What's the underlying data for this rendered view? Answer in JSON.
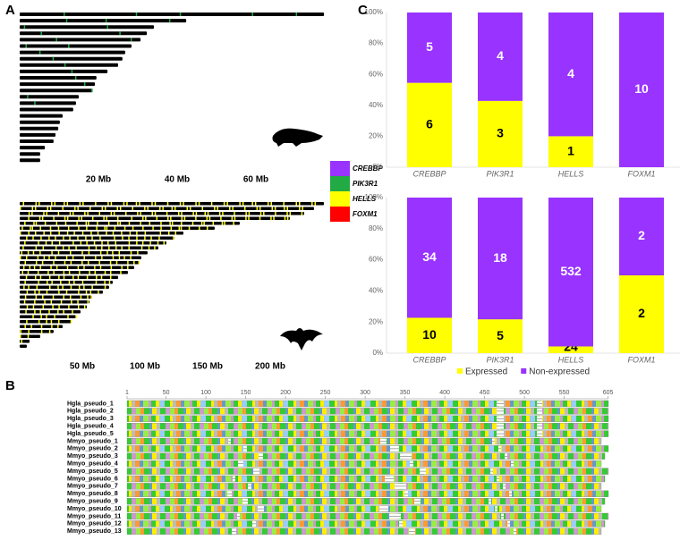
{
  "panel_a": {
    "label": "A",
    "legend": [
      {
        "name": "CREBBP",
        "color": "#9933ff"
      },
      {
        "name": "PIK3R1",
        "color": "#22aa44"
      },
      {
        "name": "HELLS",
        "color": "#ffff00"
      },
      {
        "name": "FOXM1",
        "color": "#ff0000"
      }
    ],
    "mole": {
      "ticks": [
        {
          "value": 20,
          "label": "20 Mb"
        },
        {
          "value": 40,
          "label": "40 Mb"
        },
        {
          "value": 60,
          "label": "60 Mb"
        }
      ],
      "scaffolds": [
        77.3,
        42.3,
        34.1,
        32.3,
        30.7,
        28.4,
        26.8,
        26.1,
        25,
        22.3,
        19.5,
        19.1,
        18.4,
        15,
        14.3,
        13.6,
        10.9,
        10.2,
        9.8,
        9.1,
        8.6,
        6.4,
        5.2,
        5.2
      ]
    },
    "bat": {
      "ticks": [
        {
          "value": 50,
          "label": "50 Mb"
        },
        {
          "value": 100,
          "label": "100 Mb"
        },
        {
          "value": 150,
          "label": "150 Mb"
        },
        {
          "value": 200,
          "label": "200 Mb"
        }
      ],
      "scaffolds": [
        242.9,
        235,
        227.1,
        215.7,
        175.7,
        155.7,
        130.7,
        123.6,
        117.1,
        110.7,
        102.1,
        97.1,
        95.7,
        91.4,
        86.4,
        78.6,
        74.3,
        71.4,
        66.4,
        57.9,
        55.7,
        53.6,
        48.6,
        45,
        41.4,
        34.3,
        27.1,
        16.4,
        7.9,
        5.7
      ]
    }
  },
  "panel_b": {
    "label": "B",
    "ticks": [
      1,
      50,
      100,
      150,
      200,
      250,
      300,
      350,
      400,
      450,
      500,
      550,
      605
    ],
    "sequences": [
      "Hgla_pseudo_1",
      "Hgla_pseudo_2",
      "Hgla_pseudo_3",
      "Hgla_pseudo_4",
      "Hgla_pseudo_5",
      "Mmyo_pseudo_1",
      "Mmyo_pseudo_2",
      "Mmyo_pseudo_3",
      "Mmyo_pseudo_4",
      "Mmyo_pseudo_5",
      "Mmyo_pseudo_6",
      "Mmyo_pseudo_7",
      "Mmyo_pseudo_8",
      "Mmyo_pseudo_9",
      "Mmyo_pseudo_10",
      "Mmyo_pseudo_11",
      "Mmyo_pseudo_12",
      "Mmyo_pseudo_13"
    ]
  },
  "panel_c": {
    "label": "C"
  },
  "chart_data": [
    {
      "type": "bar",
      "stacking": "percent",
      "categories": [
        "CREBBP",
        "PIK3R1",
        "HELLS",
        "FOXM1"
      ],
      "series": [
        {
          "color": "#ffff00",
          "values": [
            6,
            3,
            1,
            0
          ]
        },
        {
          "color": "#9933ff",
          "values": [
            5,
            4,
            4,
            10
          ]
        }
      ],
      "ylim": [
        0,
        100
      ],
      "yticks": [
        {
          "value": 0,
          "label": "0%"
        },
        {
          "value": 20,
          "label": "20%"
        },
        {
          "value": 40,
          "label": "40%"
        },
        {
          "value": 60,
          "label": "60%"
        },
        {
          "value": 80,
          "label": "80%"
        },
        {
          "value": 100,
          "label": "100%"
        }
      ]
    },
    {
      "type": "bar",
      "stacking": "percent",
      "categories": [
        "CREBBP",
        "PIK3R1",
        "HELLS",
        "FOXM1"
      ],
      "series": [
        {
          "name": "Expressed",
          "color": "#ffff00",
          "values": [
            10,
            5,
            24,
            2
          ]
        },
        {
          "name": "Non-expressed",
          "color": "#9933ff",
          "values": [
            34,
            18,
            532,
            2
          ]
        }
      ],
      "ylim": [
        0,
        100
      ],
      "yticks": [
        {
          "value": 0,
          "label": "0%"
        },
        {
          "value": 20,
          "label": "20%"
        },
        {
          "value": 40,
          "label": "40%"
        },
        {
          "value": 60,
          "label": "60%"
        },
        {
          "value": 80,
          "label": "80%"
        },
        {
          "value": 100,
          "label": "100%"
        }
      ],
      "legend": "bottom"
    }
  ]
}
